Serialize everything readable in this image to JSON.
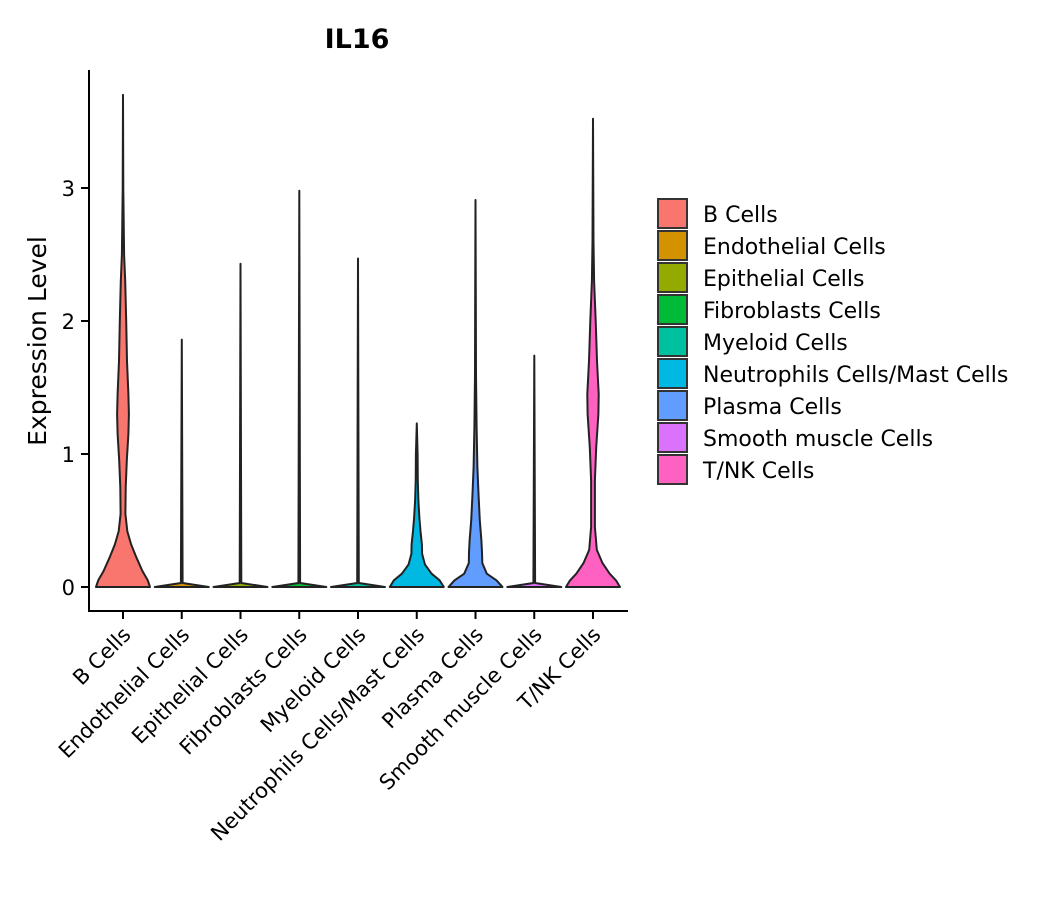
{
  "chart_data": {
    "type": "violin",
    "title": "IL16",
    "xlabel": "",
    "ylabel": "Expression Level",
    "ylim": [
      -0.18,
      3.9
    ],
    "yticks": [
      0,
      1,
      2,
      3
    ],
    "categories": [
      "B Cells",
      "Endothelial Cells",
      "Epithelial Cells",
      "Fibroblasts Cells",
      "Myeloid Cells",
      "Neutrophils Cells/Mast Cells",
      "Plasma Cells",
      "Smooth muscle Cells",
      "T/NK Cells"
    ],
    "colors": [
      "#F8766D",
      "#D39200",
      "#93AA00",
      "#00BA38",
      "#00C19F",
      "#00B9E3",
      "#619CFF",
      "#DB72FB",
      "#FF61C3"
    ],
    "violins": [
      {
        "name": "B Cells",
        "max": 3.7,
        "profile": [
          [
            0,
            1.0
          ],
          [
            0.05,
            0.92
          ],
          [
            0.12,
            0.72
          ],
          [
            0.22,
            0.5
          ],
          [
            0.32,
            0.3
          ],
          [
            0.42,
            0.16
          ],
          [
            0.55,
            0.09
          ],
          [
            0.75,
            0.1
          ],
          [
            0.95,
            0.14
          ],
          [
            1.15,
            0.2
          ],
          [
            1.3,
            0.22
          ],
          [
            1.45,
            0.2
          ],
          [
            1.7,
            0.15
          ],
          [
            2.0,
            0.12
          ],
          [
            2.3,
            0.08
          ],
          [
            2.5,
            0.04
          ],
          [
            3.0,
            0.01
          ],
          [
            3.7,
            0.0
          ]
        ]
      },
      {
        "name": "Endothelial Cells",
        "max": 1.86,
        "profile": [
          [
            0,
            1.0
          ],
          [
            0.03,
            0.03
          ],
          [
            1.86,
            0.0
          ]
        ]
      },
      {
        "name": "Epithelial Cells",
        "max": 2.43,
        "profile": [
          [
            0,
            1.0
          ],
          [
            0.03,
            0.03
          ],
          [
            2.43,
            0.0
          ]
        ]
      },
      {
        "name": "Fibroblasts Cells",
        "max": 2.98,
        "profile": [
          [
            0,
            1.0
          ],
          [
            0.03,
            0.03
          ],
          [
            2.98,
            0.0
          ]
        ]
      },
      {
        "name": "Myeloid Cells",
        "max": 2.47,
        "profile": [
          [
            0,
            1.0
          ],
          [
            0.03,
            0.03
          ],
          [
            2.47,
            0.0
          ]
        ]
      },
      {
        "name": "Neutrophils Cells/Mast Cells",
        "max": 1.23,
        "profile": [
          [
            0,
            1.0
          ],
          [
            0.05,
            0.85
          ],
          [
            0.1,
            0.55
          ],
          [
            0.17,
            0.3
          ],
          [
            0.25,
            0.2
          ],
          [
            0.32,
            0.19
          ],
          [
            0.42,
            0.14
          ],
          [
            0.52,
            0.1
          ],
          [
            0.65,
            0.06
          ],
          [
            0.8,
            0.04
          ],
          [
            1.0,
            0.03
          ],
          [
            1.23,
            0.0
          ]
        ]
      },
      {
        "name": "Plasma Cells",
        "max": 2.91,
        "profile": [
          [
            0,
            1.0
          ],
          [
            0.05,
            0.78
          ],
          [
            0.1,
            0.42
          ],
          [
            0.18,
            0.25
          ],
          [
            0.26,
            0.24
          ],
          [
            0.35,
            0.22
          ],
          [
            0.5,
            0.16
          ],
          [
            0.7,
            0.11
          ],
          [
            0.9,
            0.07
          ],
          [
            1.2,
            0.04
          ],
          [
            1.6,
            0.02
          ],
          [
            2.2,
            0.01
          ],
          [
            2.91,
            0.0
          ]
        ]
      },
      {
        "name": "Smooth muscle Cells",
        "max": 1.74,
        "profile": [
          [
            0,
            1.0
          ],
          [
            0.03,
            0.03
          ],
          [
            1.74,
            0.0
          ]
        ]
      },
      {
        "name": "T/NK Cells",
        "max": 3.52,
        "profile": [
          [
            0,
            1.0
          ],
          [
            0.05,
            0.85
          ],
          [
            0.1,
            0.62
          ],
          [
            0.18,
            0.35
          ],
          [
            0.28,
            0.14
          ],
          [
            0.45,
            0.07
          ],
          [
            0.8,
            0.07
          ],
          [
            1.05,
            0.12
          ],
          [
            1.3,
            0.2
          ],
          [
            1.45,
            0.21
          ],
          [
            1.7,
            0.15
          ],
          [
            2.0,
            0.1
          ],
          [
            2.3,
            0.04
          ],
          [
            2.6,
            0.02
          ],
          [
            3.52,
            0.0
          ]
        ]
      }
    ],
    "legend": {
      "position": "right",
      "entries": [
        {
          "label": "B Cells",
          "color": "#F8766D"
        },
        {
          "label": "Endothelial Cells",
          "color": "#D39200"
        },
        {
          "label": "Epithelial Cells",
          "color": "#93AA00"
        },
        {
          "label": "Fibroblasts Cells",
          "color": "#00BA38"
        },
        {
          "label": "Myeloid Cells",
          "color": "#00C19F"
        },
        {
          "label": "Neutrophils Cells/Mast Cells",
          "color": "#00B9E3"
        },
        {
          "label": "Plasma Cells",
          "color": "#619CFF"
        },
        {
          "label": "Smooth muscle Cells",
          "color": "#DB72FB"
        },
        {
          "label": "T/NK Cells",
          "color": "#FF61C3"
        }
      ]
    },
    "grid": false
  }
}
